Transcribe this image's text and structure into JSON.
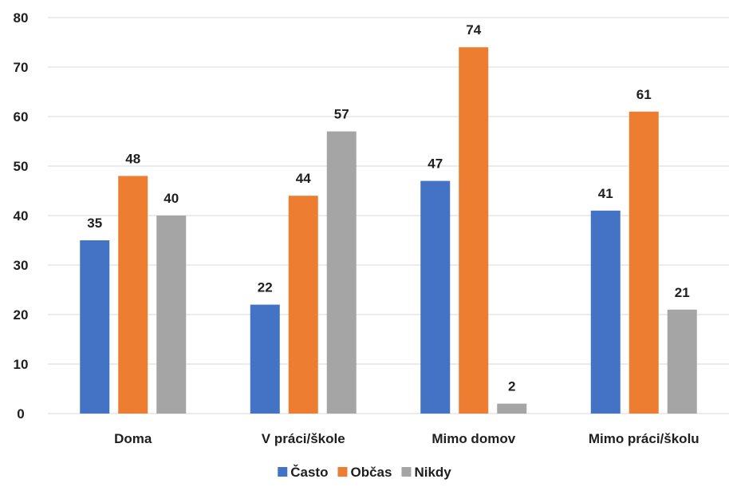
{
  "chart_data": {
    "type": "bar",
    "title": "",
    "xlabel": "",
    "ylabel": "",
    "categories": [
      "Doma",
      "V práci/škole",
      "Mimo domov",
      "Mimo práci/školu"
    ],
    "series": [
      {
        "name": "Často",
        "values": [
          35,
          22,
          47,
          41
        ],
        "color": "#4472C4"
      },
      {
        "name": "Občas",
        "values": [
          48,
          44,
          74,
          61
        ],
        "color": "#ED7D31"
      },
      {
        "name": "Nikdy",
        "values": [
          40,
          57,
          2,
          21
        ],
        "color": "#A5A5A5"
      }
    ],
    "ylim": [
      0,
      80
    ],
    "yticks": [
      "0",
      "10",
      "20",
      "30",
      "40",
      "50",
      "60",
      "70",
      "80"
    ],
    "grid": true,
    "gridline_color": "#d9d9d9",
    "data_labels": true,
    "legend_position": "bottom"
  }
}
